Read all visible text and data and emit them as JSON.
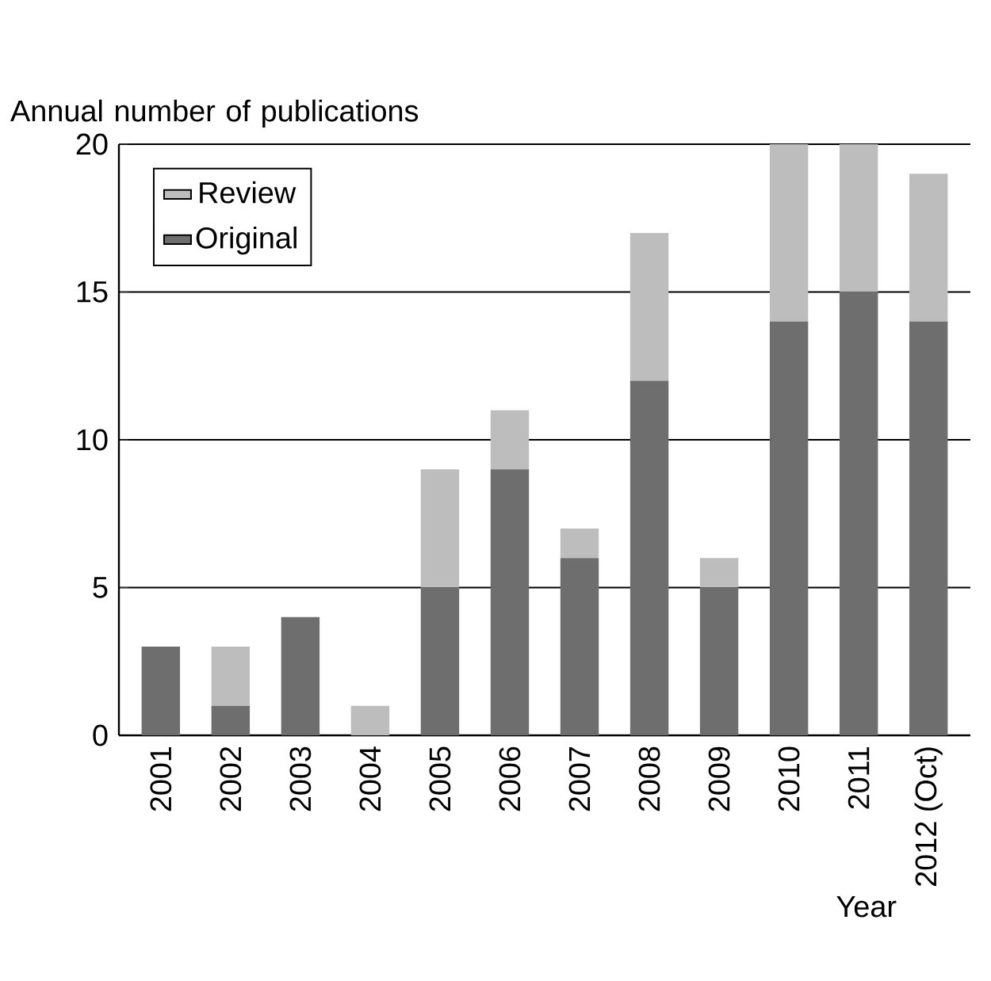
{
  "chart_data": {
    "type": "bar",
    "stacked": true,
    "xlabel": "Year",
    "ylabel": "Annual number of publications",
    "categories": [
      "2001",
      "2002",
      "2003",
      "2004",
      "2005",
      "2006",
      "2007",
      "2008",
      "2009",
      "2010",
      "2011",
      "2012 (Oct)"
    ],
    "series": [
      {
        "name": "Original",
        "color": "#6e6e6e",
        "values": [
          3,
          1,
          4,
          0,
          5,
          9,
          6,
          12,
          5,
          14,
          15,
          14
        ]
      },
      {
        "name": "Review",
        "color": "#bdbdbd",
        "values": [
          0,
          2,
          0,
          1,
          4,
          2,
          1,
          5,
          1,
          6,
          5,
          5
        ]
      }
    ],
    "ylim": [
      0,
      20
    ],
    "yticks": [
      0,
      5,
      10,
      15,
      20
    ],
    "grid": "y",
    "legend": "top left"
  }
}
